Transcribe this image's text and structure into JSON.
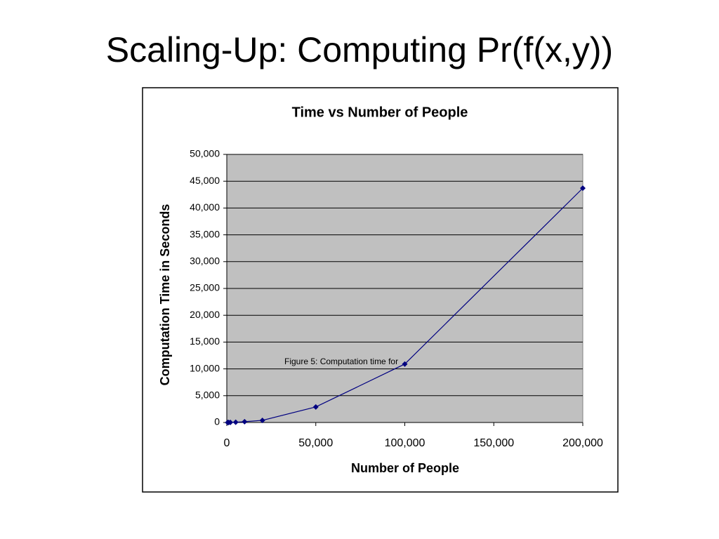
{
  "slide_title": "Scaling-Up: Computing Pr(f(x,y))",
  "chart_data": {
    "type": "line",
    "title": "Time vs Number of People",
    "x_label": "Number of People",
    "y_label": "Computation Time in Seconds",
    "annotation": "Figure 5: Computation time for",
    "x": [
      500,
      1000,
      2000,
      5000,
      10000,
      20000,
      50000,
      100000,
      200000
    ],
    "series": [
      {
        "color": "#000080",
        "values": [
          0,
          5,
          20,
          50,
          150,
          400,
          2900,
          10900,
          43700
        ]
      }
    ],
    "xlim": [
      0,
      200000
    ],
    "xticks": [
      0,
      {
        "value": 50000,
        "label": "50,000"
      },
      {
        "value": 100000,
        "label": "100,000"
      },
      {
        "value": 150000,
        "label": "150,000"
      },
      {
        "value": 200000,
        "label": "200,000"
      }
    ],
    "ylim": [
      0,
      50000
    ],
    "yticks": [
      0,
      {
        "value": 5000,
        "label": "5,000"
      },
      {
        "value": 10000,
        "label": "10,000"
      },
      {
        "value": 15000,
        "label": "15,000"
      },
      {
        "value": 20000,
        "label": "20,000"
      },
      {
        "value": 25000,
        "label": "25,000"
      },
      {
        "value": 30000,
        "label": "30,000"
      },
      {
        "value": 35000,
        "label": "35,000"
      },
      {
        "value": 40000,
        "label": "40,000"
      },
      {
        "value": 45000,
        "label": "45,000"
      },
      {
        "value": 50000,
        "label": "50,000"
      }
    ],
    "grid": true,
    "plot_background": "#c0c0c0"
  }
}
